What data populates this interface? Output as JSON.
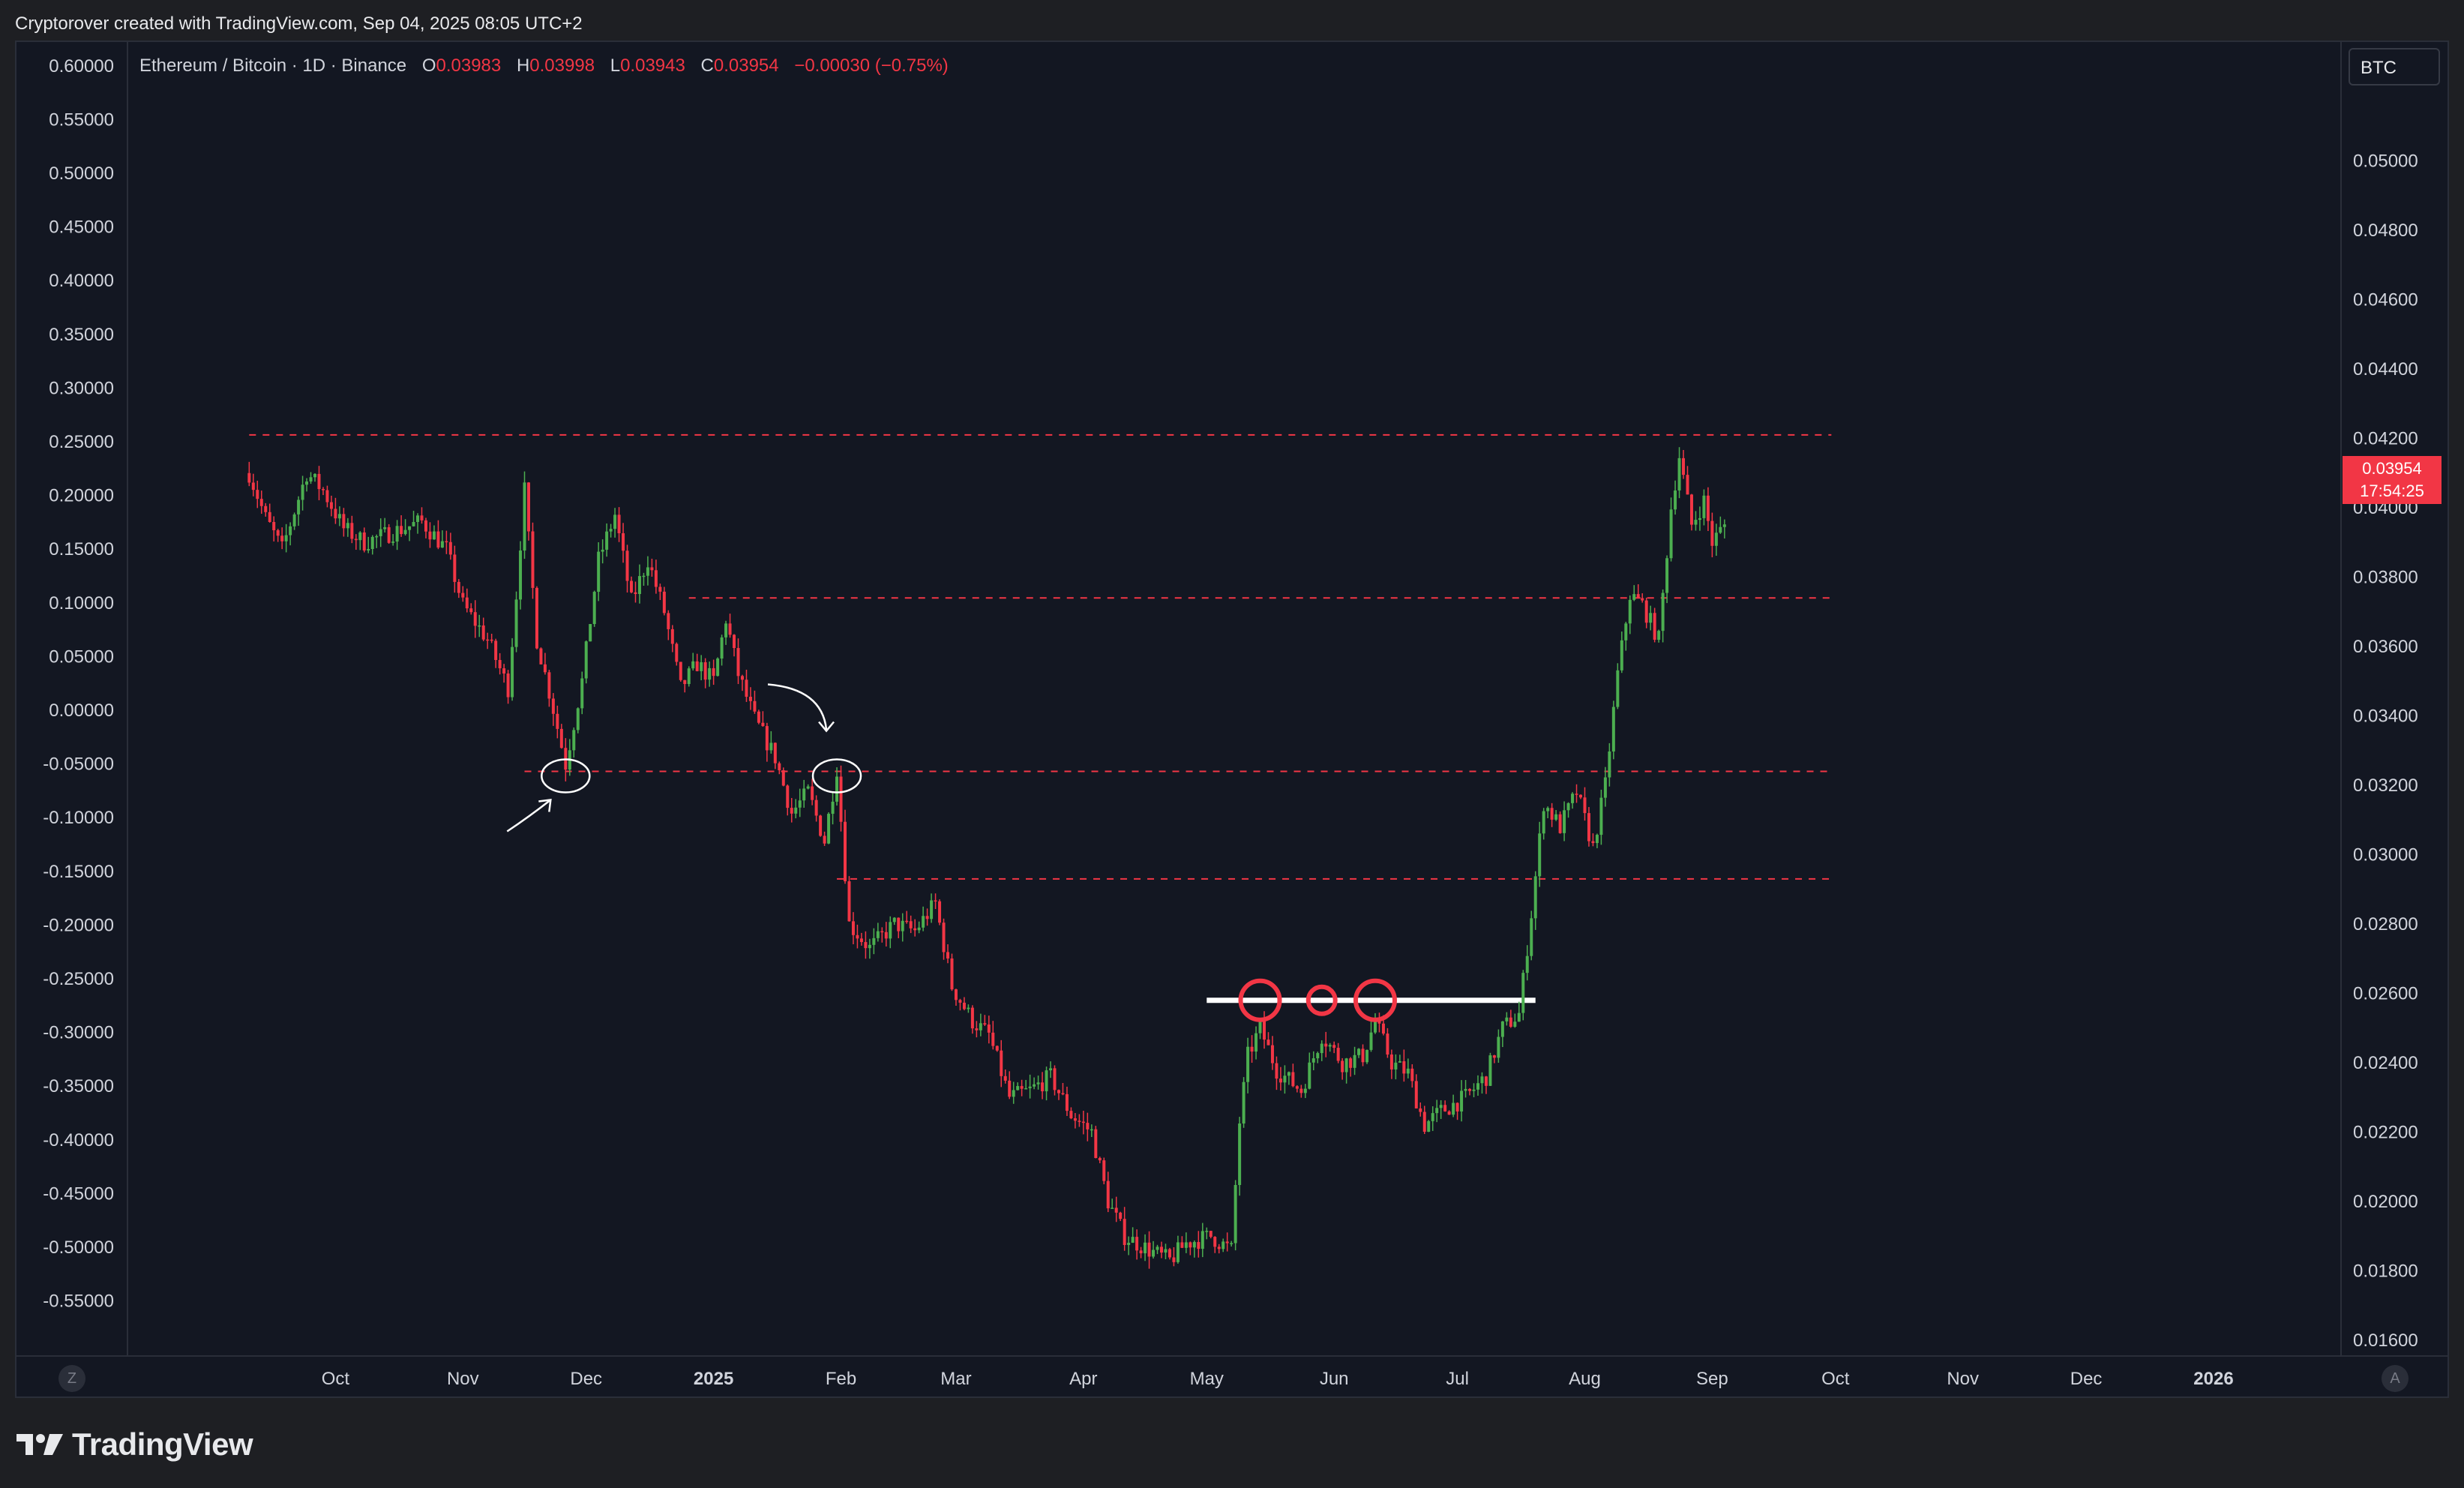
{
  "header": {
    "credit": "Cryptorover created with TradingView.com, Sep 04, 2025 08:05 UTC+2"
  },
  "legend": {
    "symbol": "Ethereum / Bitcoin · 1D · Binance",
    "open_label": "O",
    "open": "0.03983",
    "high_label": "H",
    "high": "0.03998",
    "low_label": "L",
    "low": "0.03943",
    "close_label": "C",
    "close": "0.03954",
    "change": "−0.00030 (−0.75%)"
  },
  "currency_badge": "BTC",
  "last_price": {
    "price": "0.03954",
    "countdown": "17:54:25"
  },
  "corner_buttons": {
    "left": "Z",
    "right": "A"
  },
  "footer": {
    "logo": "TradingView"
  },
  "colors": {
    "background": "#131722",
    "up": "#4caf50",
    "down": "#f23645",
    "level_line": "#f23645",
    "text": "#d1d4dc",
    "annotation": "#ffffff"
  },
  "chart_data": {
    "type": "candlestick",
    "title": "Ethereum / Bitcoin · 1D · Binance",
    "left_axis": {
      "ticks": [
        "0.60000",
        "0.55000",
        "0.50000",
        "0.45000",
        "0.40000",
        "0.35000",
        "0.30000",
        "0.25000",
        "0.20000",
        "0.15000",
        "0.10000",
        "0.05000",
        "0.00000",
        "-0.05000",
        "-0.10000",
        "-0.15000",
        "-0.20000",
        "-0.25000",
        "-0.30000",
        "-0.35000",
        "-0.40000",
        "-0.45000",
        "-0.50000",
        "-0.55000"
      ],
      "range": [
        -0.55,
        0.6
      ]
    },
    "right_axis": {
      "ticks": [
        "0.05000",
        "0.04800",
        "0.04600",
        "0.04400",
        "0.04200",
        "0.04000",
        "0.03800",
        "0.03600",
        "0.03400",
        "0.03200",
        "0.03000",
        "0.02800",
        "0.02600",
        "0.02400",
        "0.02200",
        "0.02000",
        "0.01800",
        "0.01600"
      ],
      "range": [
        0.016,
        0.05
      ],
      "unit": "BTC"
    },
    "x_axis": {
      "labels": [
        "Oct",
        "Nov",
        "Dec",
        "2025",
        "Feb",
        "Mar",
        "Apr",
        "May",
        "Jun",
        "Jul",
        "Aug",
        "Sep",
        "Oct",
        "Nov",
        "Dec",
        "2026"
      ],
      "bold": [
        "2025",
        "2026"
      ]
    },
    "price_path": [
      {
        "date": "2024-09-10",
        "price": 0.041
      },
      {
        "date": "2024-09-14",
        "price": 0.0397
      },
      {
        "date": "2024-09-18",
        "price": 0.0388
      },
      {
        "date": "2024-09-24",
        "price": 0.041
      },
      {
        "date": "2024-09-28",
        "price": 0.0405
      },
      {
        "date": "2024-10-03",
        "price": 0.0394
      },
      {
        "date": "2024-10-08",
        "price": 0.039
      },
      {
        "date": "2024-10-15",
        "price": 0.0393
      },
      {
        "date": "2024-10-22",
        "price": 0.0396
      },
      {
        "date": "2024-10-28",
        "price": 0.0388
      },
      {
        "date": "2024-11-01",
        "price": 0.0372
      },
      {
        "date": "2024-11-07",
        "price": 0.0362
      },
      {
        "date": "2024-11-12",
        "price": 0.0348
      },
      {
        "date": "2024-11-14",
        "price": 0.0375
      },
      {
        "date": "2024-11-16",
        "price": 0.0405
      },
      {
        "date": "2024-11-19",
        "price": 0.0362
      },
      {
        "date": "2024-11-23",
        "price": 0.0342
      },
      {
        "date": "2024-11-26",
        "price": 0.0326
      },
      {
        "date": "2024-11-30",
        "price": 0.035
      },
      {
        "date": "2024-12-04",
        "price": 0.0385
      },
      {
        "date": "2024-12-08",
        "price": 0.0398
      },
      {
        "date": "2024-12-12",
        "price": 0.0373
      },
      {
        "date": "2024-12-16",
        "price": 0.0385
      },
      {
        "date": "2024-12-20",
        "price": 0.037
      },
      {
        "date": "2024-12-24",
        "price": 0.0348
      },
      {
        "date": "2024-12-28",
        "price": 0.0355
      },
      {
        "date": "2025-01-01",
        "price": 0.035
      },
      {
        "date": "2025-01-04",
        "price": 0.0368
      },
      {
        "date": "2025-01-07",
        "price": 0.0352
      },
      {
        "date": "2025-01-11",
        "price": 0.0339
      },
      {
        "date": "2025-01-16",
        "price": 0.0328
      },
      {
        "date": "2025-01-20",
        "price": 0.0312
      },
      {
        "date": "2025-01-24",
        "price": 0.0318
      },
      {
        "date": "2025-01-28",
        "price": 0.0304
      },
      {
        "date": "2025-01-31",
        "price": 0.0325
      },
      {
        "date": "2025-02-03",
        "price": 0.028
      },
      {
        "date": "2025-02-08",
        "price": 0.0273
      },
      {
        "date": "2025-02-14",
        "price": 0.028
      },
      {
        "date": "2025-02-19",
        "price": 0.0278
      },
      {
        "date": "2025-02-24",
        "price": 0.0286
      },
      {
        "date": "2025-02-28",
        "price": 0.0262
      },
      {
        "date": "2025-03-05",
        "price": 0.0252
      },
      {
        "date": "2025-03-09",
        "price": 0.0248
      },
      {
        "date": "2025-03-14",
        "price": 0.023
      },
      {
        "date": "2025-03-19",
        "price": 0.0232
      },
      {
        "date": "2025-03-24",
        "price": 0.0236
      },
      {
        "date": "2025-03-29",
        "price": 0.0225
      },
      {
        "date": "2025-04-03",
        "price": 0.022
      },
      {
        "date": "2025-04-07",
        "price": 0.02
      },
      {
        "date": "2025-04-11",
        "price": 0.019
      },
      {
        "date": "2025-04-17",
        "price": 0.0186
      },
      {
        "date": "2025-04-22",
        "price": 0.0183
      },
      {
        "date": "2025-04-26",
        "price": 0.0188
      },
      {
        "date": "2025-05-02",
        "price": 0.019
      },
      {
        "date": "2025-05-07",
        "price": 0.0186
      },
      {
        "date": "2025-05-09",
        "price": 0.0223
      },
      {
        "date": "2025-05-11",
        "price": 0.0242
      },
      {
        "date": "2025-05-14",
        "price": 0.025
      },
      {
        "date": "2025-05-18",
        "price": 0.0238
      },
      {
        "date": "2025-05-24",
        "price": 0.0232
      },
      {
        "date": "2025-05-29",
        "price": 0.0248
      },
      {
        "date": "2025-06-03",
        "price": 0.024
      },
      {
        "date": "2025-06-08",
        "price": 0.0242
      },
      {
        "date": "2025-06-11",
        "price": 0.0252
      },
      {
        "date": "2025-06-15",
        "price": 0.024
      },
      {
        "date": "2025-06-19",
        "price": 0.0237
      },
      {
        "date": "2025-06-23",
        "price": 0.0222
      },
      {
        "date": "2025-06-27",
        "price": 0.0226
      },
      {
        "date": "2025-07-03",
        "price": 0.023
      },
      {
        "date": "2025-07-08",
        "price": 0.0236
      },
      {
        "date": "2025-07-12",
        "price": 0.025
      },
      {
        "date": "2025-07-16",
        "price": 0.0254
      },
      {
        "date": "2025-07-19",
        "price": 0.0283
      },
      {
        "date": "2025-07-22",
        "price": 0.0315
      },
      {
        "date": "2025-07-26",
        "price": 0.0308
      },
      {
        "date": "2025-07-30",
        "price": 0.0318
      },
      {
        "date": "2025-08-03",
        "price": 0.0302
      },
      {
        "date": "2025-08-06",
        "price": 0.032
      },
      {
        "date": "2025-08-09",
        "price": 0.0352
      },
      {
        "date": "2025-08-12",
        "price": 0.0375
      },
      {
        "date": "2025-08-15",
        "price": 0.0372
      },
      {
        "date": "2025-08-19",
        "price": 0.0362
      },
      {
        "date": "2025-08-22",
        "price": 0.04
      },
      {
        "date": "2025-08-24",
        "price": 0.0415
      },
      {
        "date": "2025-08-27",
        "price": 0.0395
      },
      {
        "date": "2025-08-30",
        "price": 0.0402
      },
      {
        "date": "2025-09-01",
        "price": 0.039
      },
      {
        "date": "2025-09-04",
        "price": 0.0395
      }
    ],
    "horizontal_levels": [
      {
        "price": 0.0421,
        "start": "2024-09-10",
        "end": "2025-09-30",
        "style": "dashed",
        "color": "#f23645"
      },
      {
        "price": 0.0374,
        "start": "2024-12-26",
        "end": "2025-09-30",
        "style": "dashed",
        "color": "#f23645"
      },
      {
        "price": 0.0324,
        "start": "2024-11-16",
        "end": "2025-09-30",
        "style": "dashed",
        "color": "#f23645"
      },
      {
        "price": 0.0293,
        "start": "2025-01-31",
        "end": "2025-09-30",
        "style": "dashed",
        "color": "#f23645"
      },
      {
        "price": 0.0258,
        "start": "2025-05-01",
        "end": "2025-07-20",
        "style": "solid",
        "color": "#ffffff"
      }
    ],
    "circle_markers": [
      {
        "date": "2024-11-26",
        "price": 0.0324,
        "color": "#ffffff"
      },
      {
        "date": "2025-01-31",
        "price": 0.0324,
        "color": "#ffffff"
      },
      {
        "date": "2025-05-14",
        "price": 0.0258,
        "color": "#f23645"
      },
      {
        "date": "2025-05-29",
        "price": 0.0258,
        "color": "#f23645"
      },
      {
        "date": "2025-06-11",
        "price": 0.0258,
        "color": "#f23645"
      }
    ],
    "grid": false
  }
}
